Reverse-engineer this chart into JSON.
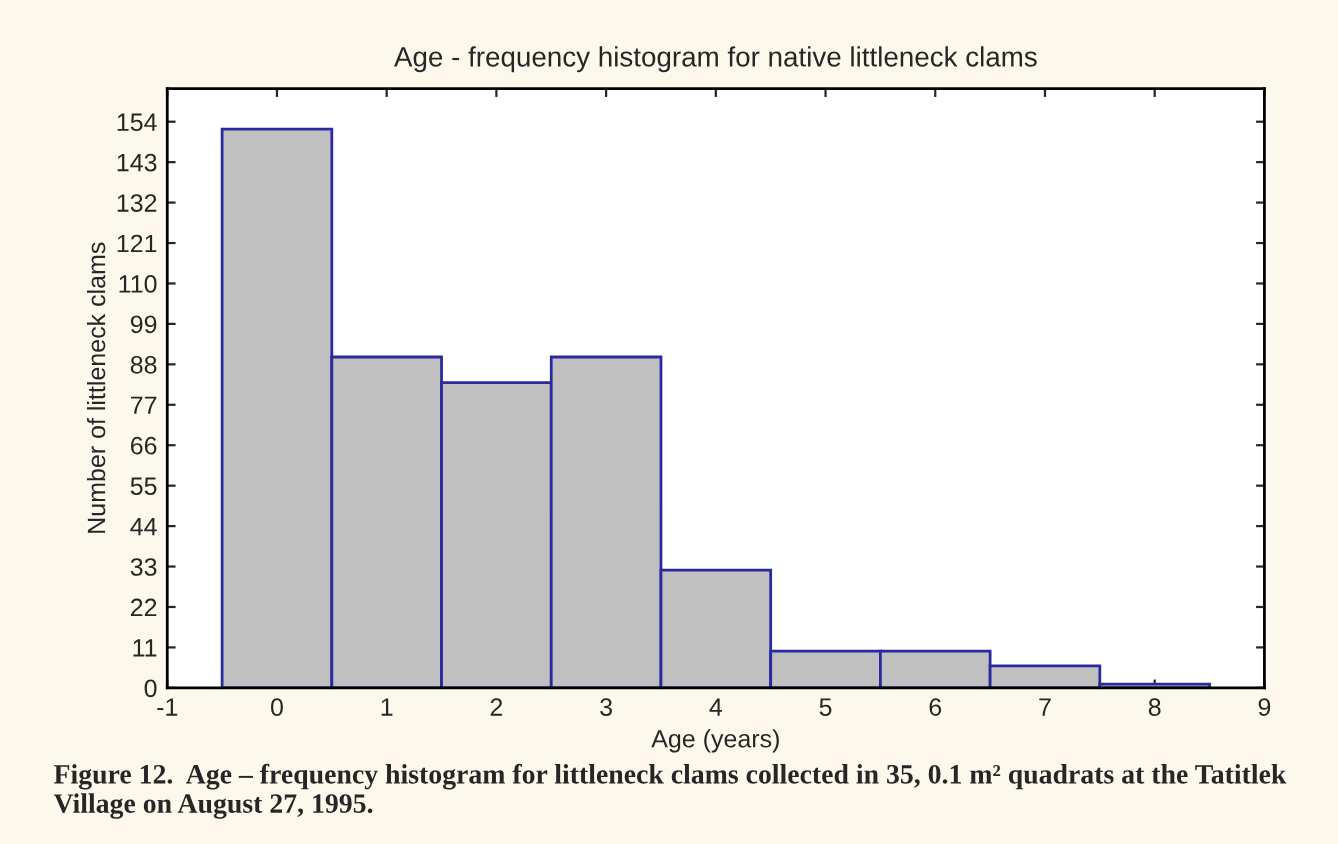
{
  "chart_data": {
    "type": "histogram",
    "title": "Age - frequency histogram for native littleneck clams",
    "xlabel": "Age (years)",
    "ylabel": "Number of littleneck clams",
    "bins": [
      -0.5,
      0.5,
      1.5,
      2.5,
      3.5,
      4.5,
      5.5,
      6.5,
      7.5,
      8.5
    ],
    "values": [
      152,
      90,
      83,
      90,
      32,
      10,
      10,
      6,
      1
    ],
    "color": "#c0c0c0",
    "xlim": [
      -1,
      9
    ],
    "xticks": [
      -1,
      0,
      1,
      2,
      3,
      4,
      5,
      6,
      7,
      8,
      9
    ],
    "ylim": [
      0,
      163
    ],
    "yticks": [
      0,
      11,
      22,
      33,
      44,
      55,
      66,
      77,
      88,
      99,
      110,
      121,
      132,
      143,
      154
    ],
    "grid": false,
    "annotations": [
      "Figure 12.  Age – frequency histogram for littleneck clams collected in 35, 0.1 m² quadrats at the Tatitlek Village on August 27, 1995."
    ]
  }
}
